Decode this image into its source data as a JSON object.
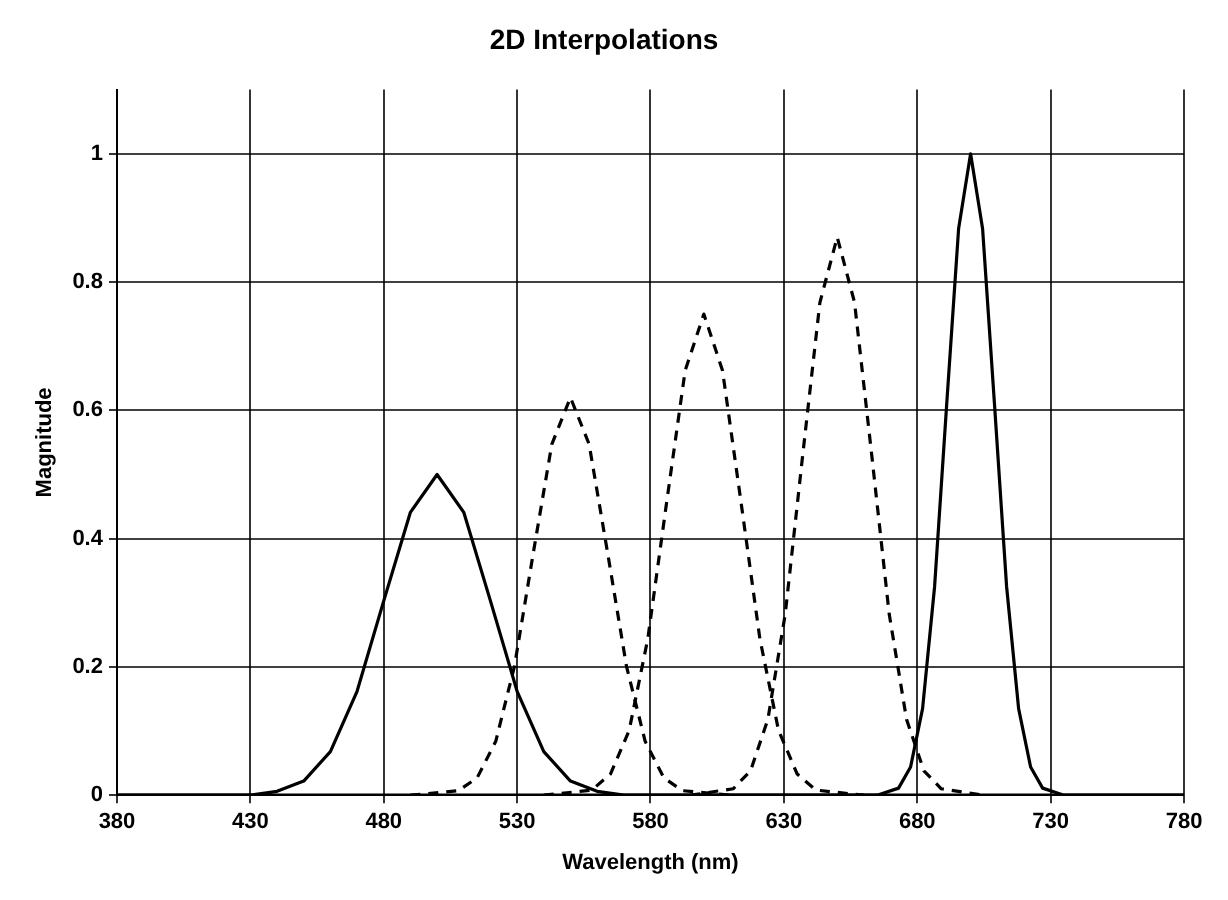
{
  "chart_data": {
    "type": "line",
    "title": "2D Interpolations",
    "xlabel": "Wavelength (nm)",
    "ylabel": "Magnitude",
    "xlim": [
      380,
      780
    ],
    "xticks": [
      380,
      430,
      480,
      530,
      580,
      630,
      680,
      730,
      780
    ],
    "ylim": [
      0,
      1.1
    ],
    "yticks": [
      0,
      0.2,
      0.4,
      0.6,
      0.8,
      1
    ],
    "grid": true,
    "legend": false,
    "marker": "none",
    "series": [
      {
        "color": "#000000",
        "line_style": "solid",
        "x": [
          380,
          430,
          440,
          450,
          460,
          470,
          480,
          490,
          500,
          510,
          520,
          530,
          540,
          550,
          560,
          570,
          780
        ],
        "values": [
          0,
          0,
          0.006,
          0.022,
          0.068,
          0.162,
          0.303,
          0.441,
          0.5,
          0.441,
          0.303,
          0.162,
          0.068,
          0.022,
          0.006,
          0,
          0
        ]
      },
      {
        "color": "#000000",
        "line_style": "dashed",
        "x": [
          490,
          508,
          515,
          522,
          529,
          536,
          543,
          550,
          557,
          564,
          571,
          578,
          585,
          592,
          610
        ],
        "values": [
          0,
          0.007,
          0.027,
          0.084,
          0.201,
          0.376,
          0.547,
          0.62,
          0.547,
          0.376,
          0.201,
          0.084,
          0.027,
          0.007,
          0
        ]
      },
      {
        "color": "#000000",
        "line_style": "dashed",
        "x": [
          540,
          558,
          565,
          572,
          579,
          586,
          593,
          600,
          607,
          614,
          621,
          628,
          635,
          642,
          660
        ],
        "values": [
          0,
          0.008,
          0.033,
          0.101,
          0.244,
          0.455,
          0.662,
          0.75,
          0.662,
          0.455,
          0.244,
          0.101,
          0.033,
          0.008,
          0
        ]
      },
      {
        "color": "#000000",
        "line_style": "dashed",
        "x": [
          595,
          611,
          617.5,
          624,
          630.5,
          637,
          643.5,
          650,
          656.5,
          663,
          669.5,
          676,
          682.5,
          689,
          705
        ],
        "values": [
          0,
          0.01,
          0.038,
          0.118,
          0.282,
          0.528,
          0.768,
          0.87,
          0.768,
          0.528,
          0.282,
          0.118,
          0.038,
          0.01,
          0
        ]
      },
      {
        "color": "#000000",
        "line_style": "solid",
        "x": [
          380,
          665,
          673,
          677.5,
          682,
          686.5,
          691,
          695.5,
          700,
          704.5,
          709,
          713.5,
          718,
          722.5,
          727,
          735,
          780
        ],
        "values": [
          0,
          0,
          0.011,
          0.044,
          0.135,
          0.325,
          0.607,
          0.883,
          1,
          0.883,
          0.607,
          0.325,
          0.135,
          0.044,
          0.011,
          0,
          0
        ]
      }
    ]
  }
}
